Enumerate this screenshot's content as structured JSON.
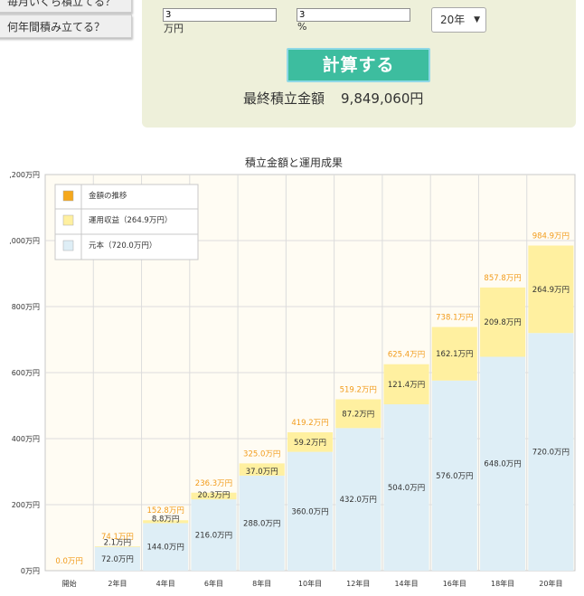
{
  "sidebar": {
    "tab_monthly": "毎月いくら積立てる？",
    "tab_years": "何年間積み立てる？"
  },
  "form": {
    "monthly_value": "3",
    "monthly_unit": "万円",
    "rate_value": "3",
    "rate_unit": "%",
    "years_selected": "20年",
    "calc_button": "計算する",
    "result_label": "最終積立金額",
    "result_value": "9,849,060円"
  },
  "colors": {
    "principal": "#deeef6",
    "gain": "#fff0a0",
    "total_label": "#f29c1c",
    "legend_total": "#f5a81c",
    "plot_bg": "#fffcf3"
  },
  "chart_data": {
    "type": "bar",
    "title": "積立金額と運用成果",
    "categories": [
      "開始",
      "2年目",
      "4年目",
      "6年目",
      "8年目",
      "10年目",
      "12年目",
      "14年目",
      "16年目",
      "18年目",
      "20年目"
    ],
    "series": [
      {
        "name": "元本（720.0万円）",
        "values": [
          0,
          72.0,
          144.0,
          216.0,
          288.0,
          360.0,
          432.0,
          504.0,
          576.0,
          648.0,
          720.0
        ],
        "labels": [
          "",
          "72.0万円",
          "144.0万円",
          "216.0万円",
          "288.0万円",
          "360.0万円",
          "432.0万円",
          "504.0万円",
          "576.0万円",
          "648.0万円",
          "720.0万円"
        ]
      },
      {
        "name": "運用収益（264.9万円）",
        "values": [
          0,
          2.1,
          8.8,
          20.3,
          37.0,
          59.2,
          87.2,
          121.4,
          162.1,
          209.8,
          264.9
        ],
        "labels": [
          "",
          "2.1万円",
          "8.8万円",
          "20.3万円",
          "37.0万円",
          "59.2万円",
          "87.2万円",
          "121.4万円",
          "162.1万円",
          "209.8万円",
          "264.9万円"
        ]
      },
      {
        "name": "金額の推移",
        "values": [
          0,
          74.1,
          152.8,
          236.3,
          325.0,
          419.2,
          519.2,
          625.4,
          738.1,
          857.8,
          984.9
        ],
        "labels": [
          "0.0万円",
          "74.1万円",
          "152.8万円",
          "236.3万円",
          "325.0万円",
          "419.2万円",
          "519.2万円",
          "625.4万円",
          "738.1万円",
          "857.8万円",
          "984.9万円"
        ]
      }
    ],
    "ylim": [
      0,
      1200
    ],
    "yticks": [
      0,
      200,
      400,
      600,
      800,
      1000,
      1200
    ],
    "ytick_labels": [
      "0万円",
      "200万円",
      "400万円",
      "600万円",
      "800万円",
      ",000万円",
      ",200万円"
    ],
    "grid": true,
    "legend_position": "top-left"
  }
}
